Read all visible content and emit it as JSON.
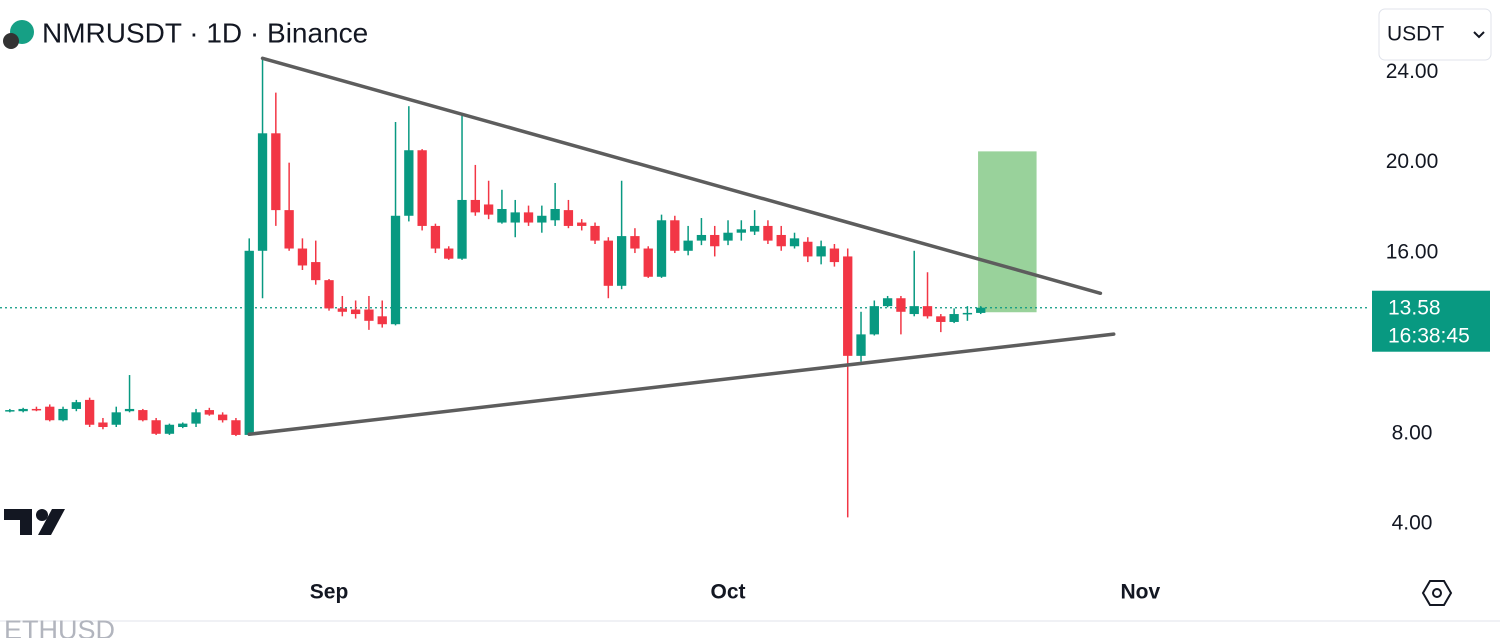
{
  "chart_data": {
    "type": "candlestick",
    "title": "NMRUSDT · 1D · Binance",
    "currency": "USDT",
    "categories": [
      null,
      null,
      null,
      null,
      null,
      null,
      null,
      null,
      null,
      null,
      null,
      null,
      null,
      null,
      null,
      null,
      null,
      null,
      null,
      null,
      null,
      null,
      null,
      null,
      null,
      null,
      null,
      null,
      null,
      null,
      null,
      null,
      null,
      null,
      null,
      null,
      null,
      null,
      null,
      null,
      null,
      null,
      null,
      null,
      null,
      null,
      null,
      null,
      null,
      null,
      null,
      null,
      null,
      null,
      null,
      null,
      null,
      null,
      null,
      null,
      null,
      null,
      null,
      null,
      null,
      null,
      null,
      null,
      null,
      null,
      null,
      null,
      null,
      null
    ],
    "open": [
      9.0,
      9.0,
      9.1,
      9.2,
      8.6,
      9.1,
      9.5,
      8.5,
      8.4,
      9.0,
      9.05,
      8.6,
      8.0,
      8.3,
      8.45,
      9.05,
      8.85,
      8.6,
      7.95,
      16.1,
      21.3,
      17.9,
      16.2,
      15.6,
      14.8,
      13.55,
      13.5,
      13.5,
      13.2,
      12.85,
      17.65,
      20.55,
      17.2,
      16.2,
      15.75,
      18.35,
      18.15,
      17.35,
      17.35,
      17.8,
      17.35,
      17.45,
      17.9,
      17.35,
      17.2,
      16.55,
      14.55,
      16.75,
      16.2,
      14.95,
      17.45,
      16.1,
      16.55,
      16.8,
      16.55,
      16.9,
      16.95,
      17.2,
      16.8,
      16.3,
      16.5,
      15.85,
      16.2,
      15.85,
      11.45,
      12.4,
      13.65,
      14.0,
      13.3,
      13.65,
      13.2,
      12.95,
      13.3,
      13.35
    ],
    "high": [
      9.1,
      9.15,
      9.2,
      9.3,
      9.2,
      9.5,
      9.6,
      8.7,
      9.2,
      10.6,
      9.1,
      8.7,
      8.45,
      8.5,
      9.1,
      9.15,
      8.95,
      8.7,
      16.65,
      24.6,
      23.1,
      20.0,
      16.65,
      16.55,
      14.85,
      14.1,
      13.9,
      14.1,
      13.9,
      21.8,
      22.5,
      20.6,
      17.3,
      16.3,
      22.1,
      19.9,
      19.2,
      18.8,
      18.35,
      18.1,
      18.1,
      19.1,
      18.35,
      17.5,
      17.35,
      16.7,
      19.2,
      17.1,
      16.3,
      17.7,
      17.65,
      17.2,
      17.55,
      17.2,
      17.45,
      17.45,
      17.9,
      17.45,
      17.2,
      16.9,
      16.7,
      16.55,
      16.4,
      16.2,
      13.4,
      13.9,
      14.1,
      14.1,
      16.1,
      15.15,
      13.3,
      13.55,
      13.65,
      13.65
    ],
    "low": [
      8.95,
      8.95,
      9.0,
      8.55,
      8.55,
      9.0,
      8.3,
      8.2,
      8.3,
      8.95,
      8.55,
      7.95,
      7.95,
      8.25,
      8.3,
      8.8,
      8.5,
      7.9,
      7.9,
      14.0,
      17.2,
      16.1,
      15.25,
      14.6,
      13.45,
      13.2,
      13.1,
      12.6,
      12.7,
      12.8,
      17.4,
      17.0,
      16.0,
      15.7,
      15.7,
      17.65,
      17.5,
      17.3,
      16.7,
      17.2,
      16.9,
      17.2,
      17.1,
      17.0,
      16.4,
      14.0,
      14.4,
      16.0,
      14.9,
      14.9,
      16.0,
      15.9,
      16.35,
      15.85,
      16.35,
      16.55,
      16.8,
      16.4,
      16.1,
      16.2,
      15.6,
      15.5,
      15.4,
      4.3,
      11.2,
      12.35,
      13.6,
      12.4,
      13.2,
      13.1,
      12.5,
      12.9,
      13.0,
      13.3
    ],
    "close": [
      9.05,
      9.1,
      9.05,
      8.6,
      9.1,
      9.4,
      8.4,
      8.3,
      8.95,
      9.1,
      8.6,
      8.0,
      8.4,
      8.45,
      8.95,
      8.85,
      8.6,
      7.95,
      16.1,
      21.3,
      17.9,
      16.2,
      15.45,
      14.8,
      13.55,
      13.4,
      13.3,
      13.0,
      12.85,
      17.65,
      20.55,
      17.2,
      16.2,
      15.75,
      18.35,
      17.8,
      17.7,
      17.95,
      17.8,
      17.35,
      17.65,
      17.95,
      17.2,
      17.2,
      16.55,
      14.55,
      16.75,
      16.2,
      14.95,
      17.45,
      16.1,
      16.55,
      16.8,
      16.3,
      16.9,
      17.05,
      17.2,
      16.55,
      16.3,
      16.65,
      15.85,
      16.3,
      15.6,
      11.45,
      12.4,
      13.65,
      14.0,
      13.4,
      13.65,
      13.2,
      12.95,
      13.3,
      13.35,
      13.58
    ],
    "up_color": "#089981",
    "down_color": "#f23645",
    "xlim": [
      -0.74,
      102.27
    ],
    "xticks": [
      {
        "value": 24,
        "label": "Sep"
      },
      {
        "value": 54,
        "label": "Oct"
      },
      {
        "value": 85,
        "label": "Nov"
      }
    ],
    "ylim": [
      1.75,
      27.2
    ],
    "yticks": [
      {
        "value": 4,
        "label": "4.00"
      },
      {
        "value": 8,
        "label": "8.00"
      },
      {
        "value": 16,
        "label": "16.00"
      },
      {
        "value": 20,
        "label": "20.00"
      },
      {
        "value": 24,
        "label": "24.00"
      }
    ],
    "last_price": 13.58,
    "countdown": "16:38:45",
    "trendlines": [
      {
        "x": [
          19,
          82
        ],
        "y": [
          24.62,
          14.22
        ]
      },
      {
        "x": [
          18,
          83
        ],
        "y": [
          7.98,
          12.41
        ]
      }
    ],
    "trendline_color": "#5d5d5d",
    "target_zone": {
      "x": [
        72.8,
        77.2
      ],
      "y": [
        13.38,
        20.5
      ],
      "color": "#93d096"
    },
    "footer_symbol": "ETHUSD"
  }
}
